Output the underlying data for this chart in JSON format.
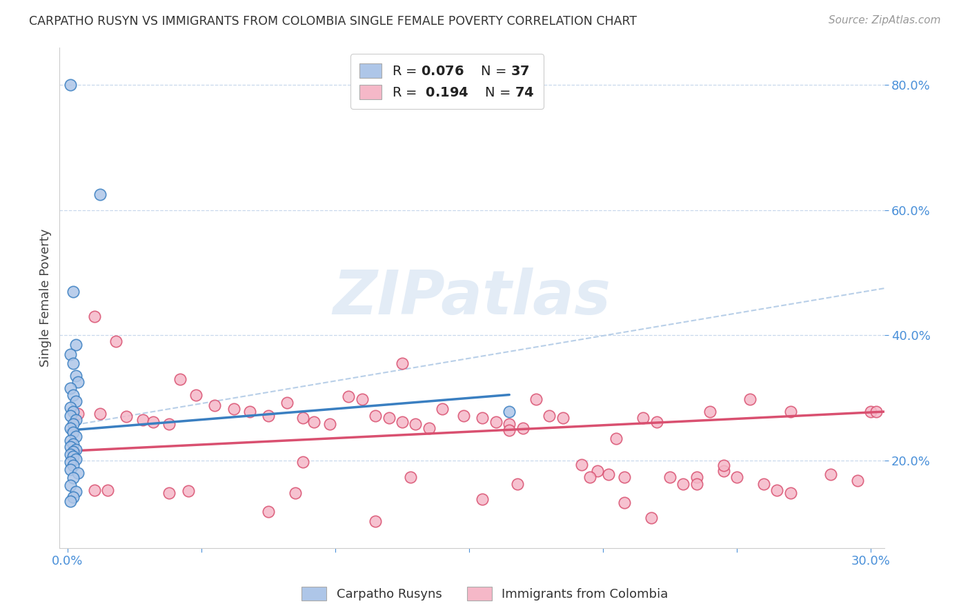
{
  "title": "CARPATHO RUSYN VS IMMIGRANTS FROM COLOMBIA SINGLE FEMALE POVERTY CORRELATION CHART",
  "source": "Source: ZipAtlas.com",
  "ylabel": "Single Female Poverty",
  "right_yticks": [
    0.2,
    0.4,
    0.6,
    0.8
  ],
  "right_ytick_labels": [
    "20.0%",
    "40.0%",
    "60.0%",
    "80.0%"
  ],
  "xlim": [
    -0.003,
    0.305
  ],
  "ylim": [
    0.06,
    0.86
  ],
  "blue_color": "#aec6e8",
  "pink_color": "#f5b8c8",
  "blue_line_color": "#3a7fc1",
  "pink_line_color": "#d95070",
  "dashed_line_color": "#b8cfe8",
  "watermark": "ZIPatlas",
  "legend_label_blue": "Carpatho Rusyns",
  "legend_label_pink": "Immigrants from Colombia",
  "blue_line_x0": 0.0,
  "blue_line_y0": 0.248,
  "blue_line_x1": 0.165,
  "blue_line_y1": 0.305,
  "pink_line_x0": 0.0,
  "pink_line_y0": 0.215,
  "pink_line_x1": 0.305,
  "pink_line_y1": 0.278,
  "dash_line_x0": 0.0,
  "dash_line_y0": 0.255,
  "dash_line_x1": 0.305,
  "dash_line_y1": 0.475,
  "blue_scatter_x": [
    0.001,
    0.012,
    0.002,
    0.003,
    0.001,
    0.002,
    0.003,
    0.004,
    0.001,
    0.002,
    0.003,
    0.001,
    0.002,
    0.001,
    0.003,
    0.002,
    0.001,
    0.002,
    0.003,
    0.001,
    0.002,
    0.001,
    0.003,
    0.002,
    0.001,
    0.002,
    0.003,
    0.001,
    0.002,
    0.001,
    0.004,
    0.002,
    0.001,
    0.003,
    0.002,
    0.001,
    0.165
  ],
  "blue_scatter_y": [
    0.8,
    0.625,
    0.47,
    0.385,
    0.37,
    0.355,
    0.335,
    0.325,
    0.315,
    0.305,
    0.295,
    0.285,
    0.278,
    0.272,
    0.265,
    0.258,
    0.252,
    0.245,
    0.238,
    0.232,
    0.226,
    0.222,
    0.218,
    0.214,
    0.21,
    0.206,
    0.202,
    0.198,
    0.192,
    0.186,
    0.18,
    0.172,
    0.16,
    0.15,
    0.142,
    0.135,
    0.278
  ],
  "pink_scatter_x": [
    0.004,
    0.01,
    0.012,
    0.018,
    0.022,
    0.028,
    0.032,
    0.038,
    0.042,
    0.048,
    0.055,
    0.062,
    0.068,
    0.075,
    0.082,
    0.088,
    0.092,
    0.098,
    0.105,
    0.11,
    0.115,
    0.12,
    0.125,
    0.13,
    0.135,
    0.14,
    0.148,
    0.155,
    0.16,
    0.165,
    0.17,
    0.175,
    0.18,
    0.185,
    0.192,
    0.198,
    0.202,
    0.208,
    0.215,
    0.22,
    0.225,
    0.23,
    0.235,
    0.24,
    0.245,
    0.25,
    0.255,
    0.26,
    0.265,
    0.27,
    0.015,
    0.038,
    0.075,
    0.115,
    0.155,
    0.195,
    0.235,
    0.27,
    0.088,
    0.128,
    0.168,
    0.208,
    0.01,
    0.218,
    0.045,
    0.085,
    0.125,
    0.165,
    0.205,
    0.245,
    0.285,
    0.295,
    0.3,
    0.302
  ],
  "pink_scatter_y": [
    0.275,
    0.43,
    0.275,
    0.39,
    0.27,
    0.265,
    0.262,
    0.258,
    0.33,
    0.305,
    0.288,
    0.282,
    0.278,
    0.272,
    0.292,
    0.268,
    0.262,
    0.258,
    0.302,
    0.298,
    0.272,
    0.268,
    0.262,
    0.258,
    0.252,
    0.282,
    0.272,
    0.268,
    0.262,
    0.258,
    0.252,
    0.298,
    0.272,
    0.268,
    0.193,
    0.183,
    0.178,
    0.173,
    0.268,
    0.262,
    0.173,
    0.163,
    0.173,
    0.278,
    0.183,
    0.173,
    0.298,
    0.163,
    0.153,
    0.148,
    0.153,
    0.148,
    0.118,
    0.103,
    0.138,
    0.173,
    0.163,
    0.278,
    0.198,
    0.173,
    0.163,
    0.133,
    0.153,
    0.108,
    0.152,
    0.148,
    0.355,
    0.248,
    0.235,
    0.192,
    0.178,
    0.168,
    0.278,
    0.278
  ]
}
